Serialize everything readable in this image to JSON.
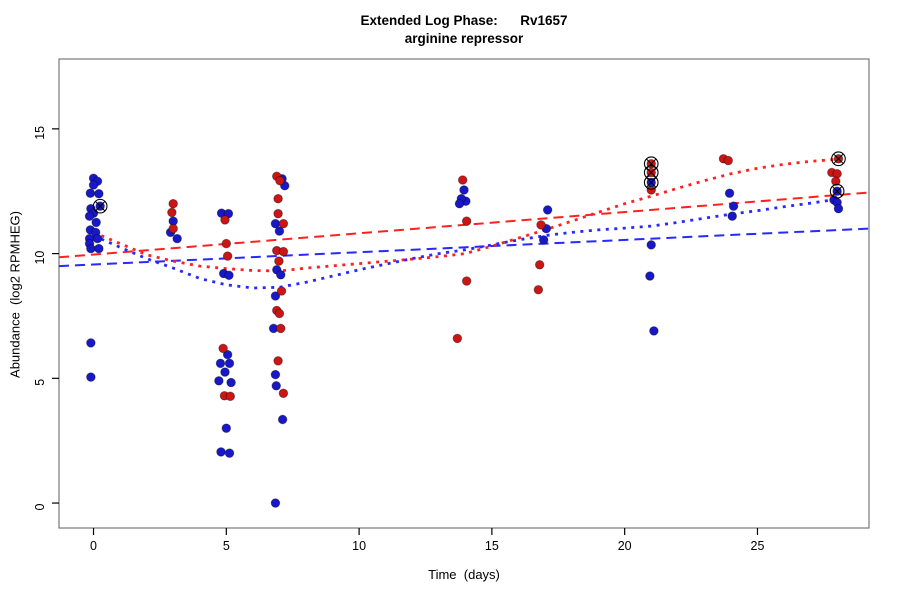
{
  "title": {
    "line1": "Extended Log Phase:      Rv1657",
    "line2": "arginine repressor"
  },
  "x_axis": {
    "label": "Time  (days)",
    "ticks": [
      "0",
      "5",
      "10",
      "15",
      "20",
      "25"
    ]
  },
  "y_axis": {
    "label": "Abundance  (log2 RPMHEG)",
    "ticks": [
      "0",
      "5",
      "10",
      "15"
    ]
  },
  "colors": {
    "red_point": "#CC1515",
    "blue_point": "#1818C8",
    "red_line": "#FF2020",
    "blue_line": "#2828FF",
    "marker_ring": "#000000",
    "box": "#777777",
    "tick": "#000000"
  },
  "chart_data": {
    "type": "scatter",
    "title": "Extended Log Phase: Rv1657 (arginine repressor)",
    "xlabel": "Time (days)",
    "ylabel": "Abundance (log2 RPMHEG)",
    "xlim": [
      -1.3,
      29.2
    ],
    "ylim": [
      -1.0,
      17.8
    ],
    "x_ticks": [
      0,
      5,
      10,
      15,
      20,
      25
    ],
    "y_ticks": [
      0,
      5,
      10,
      15
    ],
    "grid": false,
    "legend": "none",
    "series": [
      {
        "name": "blue-points",
        "kind": "points",
        "color_key": "blue_point",
        "circled": false,
        "points": [
          [
            0,
            13.02
          ],
          [
            0.15,
            12.9
          ],
          [
            0,
            12.75
          ],
          [
            -0.12,
            12.42
          ],
          [
            0.2,
            12.4
          ],
          [
            -0.1,
            11.8
          ],
          [
            0,
            11.62
          ],
          [
            -0.15,
            11.5
          ],
          [
            0.1,
            11.25
          ],
          [
            -0.12,
            10.95
          ],
          [
            0.08,
            10.85
          ],
          [
            -0.15,
            10.6
          ],
          [
            0.15,
            10.6
          ],
          [
            -0.15,
            10.4
          ],
          [
            -0.1,
            10.2
          ],
          [
            0.2,
            10.2
          ],
          [
            -0.1,
            6.42
          ],
          [
            -0.1,
            5.05
          ],
          [
            3.0,
            11.3
          ],
          [
            2.9,
            10.85
          ],
          [
            3.15,
            10.6
          ],
          [
            4.82,
            11.62
          ],
          [
            5.08,
            11.6
          ],
          [
            4.9,
            9.2
          ],
          [
            5.1,
            9.13
          ],
          [
            5.05,
            5.95
          ],
          [
            4.78,
            5.6
          ],
          [
            5.12,
            5.6
          ],
          [
            4.95,
            5.25
          ],
          [
            4.72,
            4.9
          ],
          [
            5.18,
            4.83
          ],
          [
            5.0,
            3.0
          ],
          [
            4.8,
            2.05
          ],
          [
            5.12,
            2.0
          ],
          [
            7.1,
            13.0
          ],
          [
            7.2,
            12.72
          ],
          [
            6.85,
            11.2
          ],
          [
            7.0,
            10.9
          ],
          [
            6.9,
            9.35
          ],
          [
            7.05,
            9.15
          ],
          [
            6.85,
            8.3
          ],
          [
            6.78,
            7.0
          ],
          [
            6.85,
            5.15
          ],
          [
            6.88,
            4.7
          ],
          [
            7.12,
            3.35
          ],
          [
            6.85,
            0.0
          ],
          [
            13.95,
            12.55
          ],
          [
            14.02,
            12.1
          ],
          [
            13.85,
            12.2
          ],
          [
            13.78,
            12.0
          ],
          [
            17.1,
            11.75
          ],
          [
            17.05,
            11.0
          ],
          [
            16.95,
            10.55
          ],
          [
            21.0,
            10.35
          ],
          [
            20.95,
            9.1
          ],
          [
            21.1,
            6.9
          ],
          [
            23.95,
            12.42
          ],
          [
            24.1,
            11.9
          ],
          [
            24.05,
            11.5
          ],
          [
            27.88,
            12.15
          ],
          [
            28.0,
            12.05
          ],
          [
            28.05,
            11.8
          ]
        ]
      },
      {
        "name": "red-points",
        "kind": "points",
        "color_key": "red_point",
        "circled": false,
        "points": [
          [
            3.0,
            12.0
          ],
          [
            2.95,
            11.65
          ],
          [
            3.0,
            11.0
          ],
          [
            4.95,
            11.35
          ],
          [
            5.0,
            10.4
          ],
          [
            5.05,
            9.9
          ],
          [
            4.88,
            6.2
          ],
          [
            4.93,
            4.3
          ],
          [
            5.15,
            4.28
          ],
          [
            6.9,
            13.1
          ],
          [
            7.02,
            12.92
          ],
          [
            6.95,
            12.2
          ],
          [
            6.95,
            11.6
          ],
          [
            7.15,
            11.2
          ],
          [
            6.9,
            10.12
          ],
          [
            7.15,
            10.08
          ],
          [
            6.98,
            9.7
          ],
          [
            7.08,
            8.5
          ],
          [
            6.9,
            7.72
          ],
          [
            7.0,
            7.6
          ],
          [
            7.05,
            7.0
          ],
          [
            6.95,
            5.7
          ],
          [
            7.15,
            4.4
          ],
          [
            13.9,
            12.95
          ],
          [
            14.05,
            11.3
          ],
          [
            14.05,
            8.9
          ],
          [
            13.7,
            6.6
          ],
          [
            16.85,
            11.15
          ],
          [
            16.8,
            9.55
          ],
          [
            16.75,
            8.55
          ],
          [
            21.0,
            12.55
          ],
          [
            23.72,
            13.8
          ],
          [
            23.9,
            13.73
          ],
          [
            27.8,
            13.25
          ],
          [
            28.0,
            13.2
          ],
          [
            27.95,
            12.9
          ]
        ]
      },
      {
        "name": "blue-circled-points",
        "kind": "points",
        "color_key": "blue_point",
        "circled": true,
        "points": [
          [
            0.25,
            11.9
          ],
          [
            21.0,
            12.85
          ],
          [
            28.0,
            12.5
          ]
        ]
      },
      {
        "name": "red-circled-points",
        "kind": "points",
        "color_key": "red_point",
        "circled": true,
        "points": [
          [
            21.0,
            13.6
          ],
          [
            21.0,
            13.25
          ],
          [
            28.05,
            13.8
          ]
        ]
      },
      {
        "name": "red-dashed-trendline",
        "kind": "line",
        "style": "dashed",
        "color_key": "red_line",
        "points": [
          [
            -1.3,
            9.85
          ],
          [
            29.2,
            12.45
          ]
        ]
      },
      {
        "name": "blue-dashed-trendline",
        "kind": "line",
        "style": "dashed",
        "color_key": "blue_line",
        "points": [
          [
            -1.3,
            9.5
          ],
          [
            29.2,
            11.0
          ]
        ]
      },
      {
        "name": "red-dotted-lowess",
        "kind": "line",
        "style": "dotted",
        "color_key": "red_line",
        "points": [
          [
            0,
            10.85
          ],
          [
            1,
            10.4
          ],
          [
            2,
            9.95
          ],
          [
            3,
            9.7
          ],
          [
            4,
            9.5
          ],
          [
            5,
            9.4
          ],
          [
            6,
            9.32
          ],
          [
            7,
            9.3
          ],
          [
            8,
            9.42
          ],
          [
            10,
            9.6
          ],
          [
            12,
            9.78
          ],
          [
            13,
            9.88
          ],
          [
            14,
            10.0
          ],
          [
            15,
            10.3
          ],
          [
            16,
            10.62
          ],
          [
            17,
            10.95
          ],
          [
            18,
            11.3
          ],
          [
            19,
            11.65
          ],
          [
            20,
            12.0
          ],
          [
            21,
            12.3
          ],
          [
            22,
            12.62
          ],
          [
            23,
            12.92
          ],
          [
            24,
            13.2
          ],
          [
            25,
            13.42
          ],
          [
            26,
            13.58
          ],
          [
            27,
            13.7
          ],
          [
            28,
            13.78
          ]
        ]
      },
      {
        "name": "blue-dotted-lowess",
        "kind": "line",
        "style": "dotted",
        "color_key": "blue_line",
        "points": [
          [
            0,
            10.72
          ],
          [
            1,
            10.25
          ],
          [
            2,
            9.8
          ],
          [
            3,
            9.42
          ],
          [
            4,
            9.0
          ],
          [
            5,
            8.75
          ],
          [
            6,
            8.62
          ],
          [
            7,
            8.65
          ],
          [
            8,
            8.85
          ],
          [
            10,
            9.35
          ],
          [
            12,
            9.8
          ],
          [
            13,
            10.0
          ],
          [
            14,
            10.15
          ],
          [
            15,
            10.35
          ],
          [
            16,
            10.55
          ],
          [
            17,
            10.72
          ],
          [
            18,
            10.85
          ],
          [
            19,
            10.95
          ],
          [
            20,
            11.02
          ],
          [
            21,
            11.1
          ],
          [
            22,
            11.25
          ],
          [
            23,
            11.42
          ],
          [
            24,
            11.58
          ],
          [
            25,
            11.72
          ],
          [
            26,
            11.88
          ],
          [
            27,
            12.02
          ],
          [
            28,
            12.18
          ]
        ]
      }
    ]
  }
}
